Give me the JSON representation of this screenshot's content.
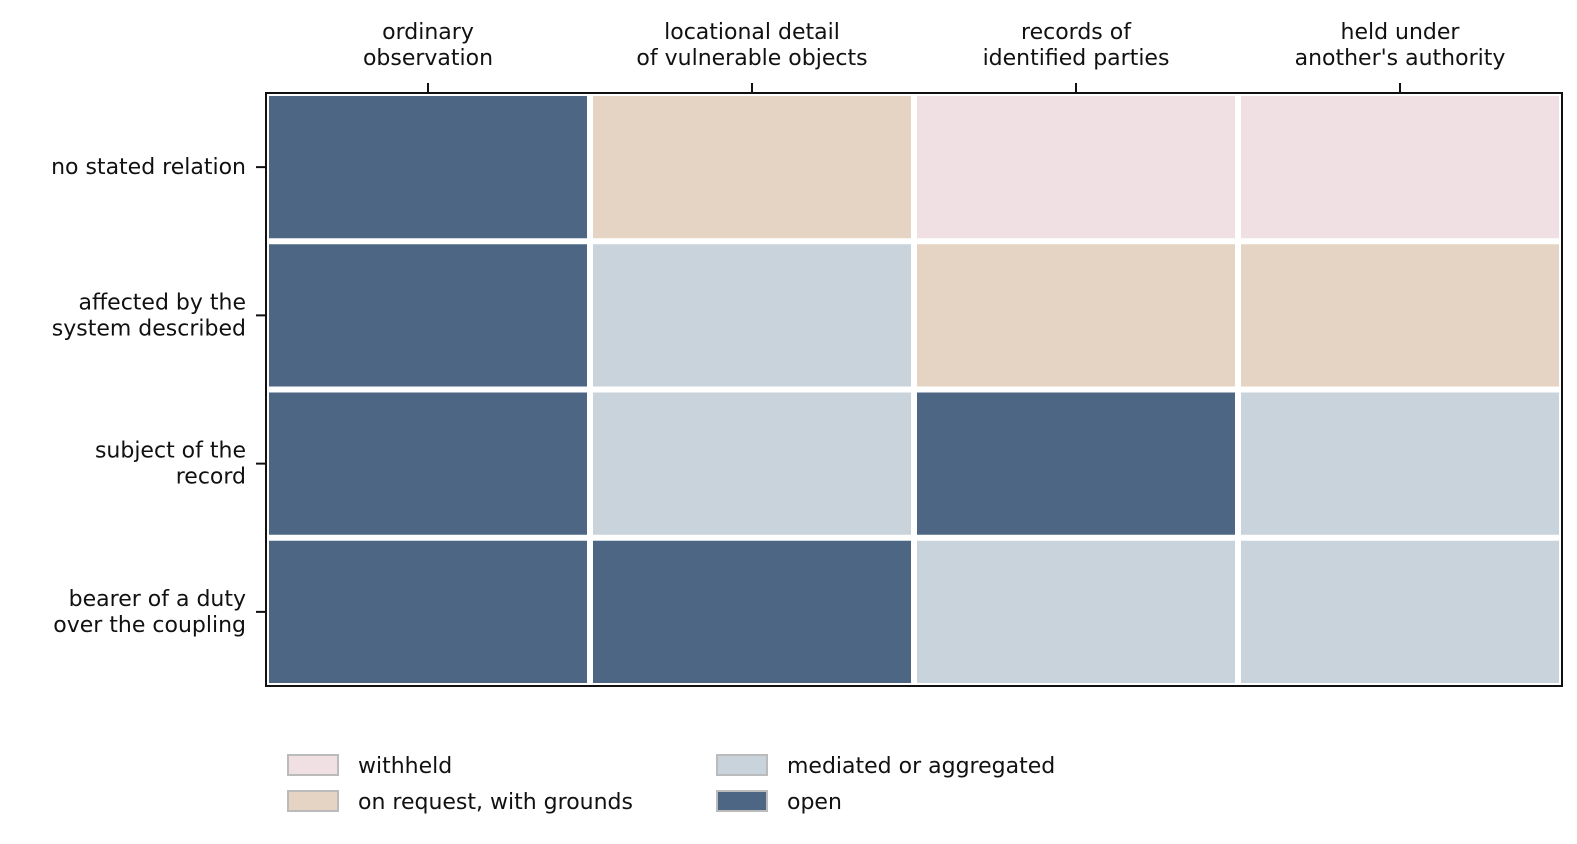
{
  "chart_data": {
    "type": "heatmap",
    "title": "",
    "xlabel": "",
    "ylabel": "",
    "grid": false,
    "x_axis_position": "top",
    "legend_position": "bottom",
    "columns": [
      [
        "ordinary",
        "observation"
      ],
      [
        "locational detail",
        "of vulnerable objects"
      ],
      [
        "records of",
        "identified parties"
      ],
      [
        "held under",
        "another's authority"
      ]
    ],
    "rows": [
      [
        "no stated relation"
      ],
      [
        "affected by the",
        "system described"
      ],
      [
        "subject of the",
        "record"
      ],
      [
        "bearer of a duty",
        "over the coupling"
      ]
    ],
    "levels": [
      {
        "label": "withheld",
        "color": "#f0e0e3"
      },
      {
        "label": "on request, with grounds",
        "color": "#e5d3c3"
      },
      {
        "label": "mediated or aggregated",
        "color": "#c9d3dc"
      },
      {
        "label": "open",
        "color": "#4c6683"
      }
    ],
    "values": [
      [
        3,
        1,
        0,
        0
      ],
      [
        3,
        2,
        1,
        1
      ],
      [
        3,
        2,
        3,
        2
      ],
      [
        3,
        3,
        2,
        2
      ]
    ]
  }
}
